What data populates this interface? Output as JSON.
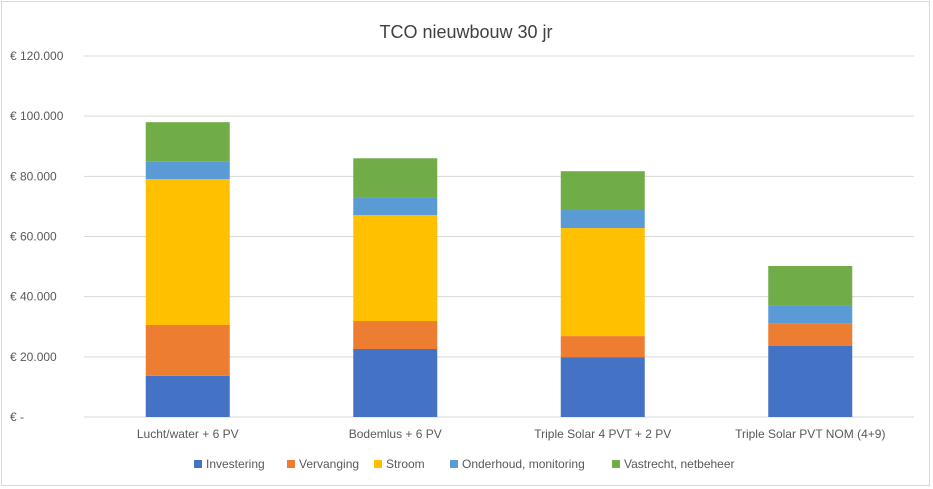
{
  "chart_data": {
    "type": "bar",
    "stacked": true,
    "title": "TCO nieuwbouw 30 jr",
    "xlabel": "",
    "ylabel": "",
    "ylim": [
      0,
      120000
    ],
    "yticks": [
      0,
      20000,
      40000,
      60000,
      80000,
      100000,
      120000
    ],
    "ytick_labels": [
      "€ -",
      "€ 20.000",
      "€ 40.000",
      "€ 60.000",
      "€ 80.000",
      "€ 100.000",
      "€ 120.000"
    ],
    "grid": true,
    "legend_position": "bottom",
    "categories": [
      "Lucht/water + 6 PV",
      "Bodemlus + 6 PV",
      "Triple Solar 4 PVT + 2 PV",
      "Triple Solar PVT NOM (4+9)"
    ],
    "series": [
      {
        "name": "Investering",
        "color": "#4472C4",
        "values": [
          13700,
          22600,
          19900,
          23600
        ]
      },
      {
        "name": "Vervanging",
        "color": "#ED7D31",
        "values": [
          16900,
          9300,
          7000,
          7600
        ]
      },
      {
        "name": "Stroom",
        "color": "#FFC000",
        "values": [
          48500,
          35200,
          35900,
          0
        ]
      },
      {
        "name": "Onderhoud, monitoring",
        "color": "#5B9BD5",
        "values": [
          5900,
          6000,
          6000,
          6000
        ]
      },
      {
        "name": "Vastrecht, netbeheer",
        "color": "#70AD47",
        "values": [
          13000,
          12900,
          12900,
          13000
        ]
      }
    ]
  }
}
